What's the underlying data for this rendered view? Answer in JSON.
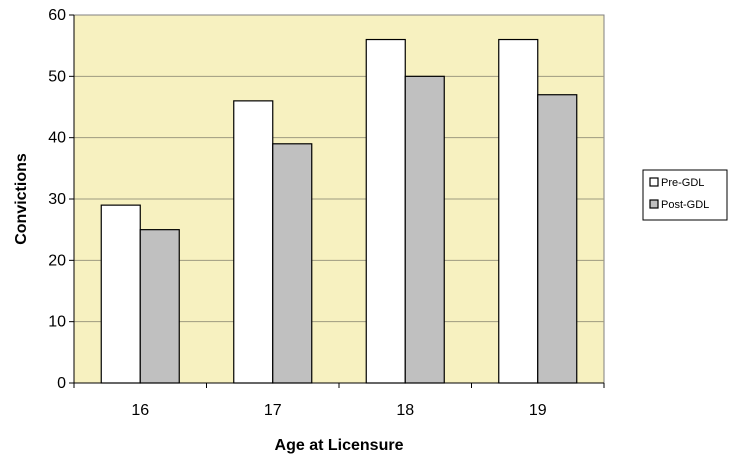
{
  "chart_data": {
    "type": "bar",
    "title": "",
    "xlabel": "Age at Licensure",
    "ylabel": "Convictions",
    "categories": [
      "16",
      "17",
      "18",
      "19"
    ],
    "series": [
      {
        "name": "Pre-GDL",
        "values": [
          29,
          46,
          56,
          56
        ],
        "color": "#ffffff"
      },
      {
        "name": "Post-GDL",
        "values": [
          25,
          39,
          50,
          47
        ],
        "color": "#c0c0c0"
      }
    ],
    "ylim": [
      0,
      60
    ],
    "yticks": [
      0,
      10,
      20,
      30,
      40,
      50,
      60
    ],
    "plot_background": "#f7f1c0",
    "grid": true,
    "legend_position": "right"
  }
}
